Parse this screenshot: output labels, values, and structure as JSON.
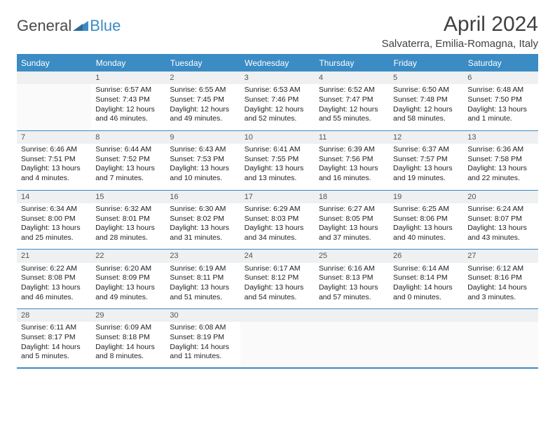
{
  "logo": {
    "part1": "General",
    "part2": "Blue"
  },
  "title": "April 2024",
  "location": "Salvaterra, Emilia-Romagna, Italy",
  "weekdays": [
    "Sunday",
    "Monday",
    "Tuesday",
    "Wednesday",
    "Thursday",
    "Friday",
    "Saturday"
  ],
  "colors": {
    "accent": "#3b8bc4",
    "header_text": "#ffffff",
    "daynum_bg": "#eef0f1",
    "blank_bg": "#fafafa",
    "text": "#222222",
    "title_text": "#404040"
  },
  "weeks": [
    {
      "nums": [
        "",
        "1",
        "2",
        "3",
        "4",
        "5",
        "6"
      ],
      "cells": [
        null,
        {
          "sunrise": "Sunrise: 6:57 AM",
          "sunset": "Sunset: 7:43 PM",
          "day1": "Daylight: 12 hours",
          "day2": "and 46 minutes."
        },
        {
          "sunrise": "Sunrise: 6:55 AM",
          "sunset": "Sunset: 7:45 PM",
          "day1": "Daylight: 12 hours",
          "day2": "and 49 minutes."
        },
        {
          "sunrise": "Sunrise: 6:53 AM",
          "sunset": "Sunset: 7:46 PM",
          "day1": "Daylight: 12 hours",
          "day2": "and 52 minutes."
        },
        {
          "sunrise": "Sunrise: 6:52 AM",
          "sunset": "Sunset: 7:47 PM",
          "day1": "Daylight: 12 hours",
          "day2": "and 55 minutes."
        },
        {
          "sunrise": "Sunrise: 6:50 AM",
          "sunset": "Sunset: 7:48 PM",
          "day1": "Daylight: 12 hours",
          "day2": "and 58 minutes."
        },
        {
          "sunrise": "Sunrise: 6:48 AM",
          "sunset": "Sunset: 7:50 PM",
          "day1": "Daylight: 13 hours",
          "day2": "and 1 minute."
        }
      ]
    },
    {
      "nums": [
        "7",
        "8",
        "9",
        "10",
        "11",
        "12",
        "13"
      ],
      "cells": [
        {
          "sunrise": "Sunrise: 6:46 AM",
          "sunset": "Sunset: 7:51 PM",
          "day1": "Daylight: 13 hours",
          "day2": "and 4 minutes."
        },
        {
          "sunrise": "Sunrise: 6:44 AM",
          "sunset": "Sunset: 7:52 PM",
          "day1": "Daylight: 13 hours",
          "day2": "and 7 minutes."
        },
        {
          "sunrise": "Sunrise: 6:43 AM",
          "sunset": "Sunset: 7:53 PM",
          "day1": "Daylight: 13 hours",
          "day2": "and 10 minutes."
        },
        {
          "sunrise": "Sunrise: 6:41 AM",
          "sunset": "Sunset: 7:55 PM",
          "day1": "Daylight: 13 hours",
          "day2": "and 13 minutes."
        },
        {
          "sunrise": "Sunrise: 6:39 AM",
          "sunset": "Sunset: 7:56 PM",
          "day1": "Daylight: 13 hours",
          "day2": "and 16 minutes."
        },
        {
          "sunrise": "Sunrise: 6:37 AM",
          "sunset": "Sunset: 7:57 PM",
          "day1": "Daylight: 13 hours",
          "day2": "and 19 minutes."
        },
        {
          "sunrise": "Sunrise: 6:36 AM",
          "sunset": "Sunset: 7:58 PM",
          "day1": "Daylight: 13 hours",
          "day2": "and 22 minutes."
        }
      ]
    },
    {
      "nums": [
        "14",
        "15",
        "16",
        "17",
        "18",
        "19",
        "20"
      ],
      "cells": [
        {
          "sunrise": "Sunrise: 6:34 AM",
          "sunset": "Sunset: 8:00 PM",
          "day1": "Daylight: 13 hours",
          "day2": "and 25 minutes."
        },
        {
          "sunrise": "Sunrise: 6:32 AM",
          "sunset": "Sunset: 8:01 PM",
          "day1": "Daylight: 13 hours",
          "day2": "and 28 minutes."
        },
        {
          "sunrise": "Sunrise: 6:30 AM",
          "sunset": "Sunset: 8:02 PM",
          "day1": "Daylight: 13 hours",
          "day2": "and 31 minutes."
        },
        {
          "sunrise": "Sunrise: 6:29 AM",
          "sunset": "Sunset: 8:03 PM",
          "day1": "Daylight: 13 hours",
          "day2": "and 34 minutes."
        },
        {
          "sunrise": "Sunrise: 6:27 AM",
          "sunset": "Sunset: 8:05 PM",
          "day1": "Daylight: 13 hours",
          "day2": "and 37 minutes."
        },
        {
          "sunrise": "Sunrise: 6:25 AM",
          "sunset": "Sunset: 8:06 PM",
          "day1": "Daylight: 13 hours",
          "day2": "and 40 minutes."
        },
        {
          "sunrise": "Sunrise: 6:24 AM",
          "sunset": "Sunset: 8:07 PM",
          "day1": "Daylight: 13 hours",
          "day2": "and 43 minutes."
        }
      ]
    },
    {
      "nums": [
        "21",
        "22",
        "23",
        "24",
        "25",
        "26",
        "27"
      ],
      "cells": [
        {
          "sunrise": "Sunrise: 6:22 AM",
          "sunset": "Sunset: 8:08 PM",
          "day1": "Daylight: 13 hours",
          "day2": "and 46 minutes."
        },
        {
          "sunrise": "Sunrise: 6:20 AM",
          "sunset": "Sunset: 8:09 PM",
          "day1": "Daylight: 13 hours",
          "day2": "and 49 minutes."
        },
        {
          "sunrise": "Sunrise: 6:19 AM",
          "sunset": "Sunset: 8:11 PM",
          "day1": "Daylight: 13 hours",
          "day2": "and 51 minutes."
        },
        {
          "sunrise": "Sunrise: 6:17 AM",
          "sunset": "Sunset: 8:12 PM",
          "day1": "Daylight: 13 hours",
          "day2": "and 54 minutes."
        },
        {
          "sunrise": "Sunrise: 6:16 AM",
          "sunset": "Sunset: 8:13 PM",
          "day1": "Daylight: 13 hours",
          "day2": "and 57 minutes."
        },
        {
          "sunrise": "Sunrise: 6:14 AM",
          "sunset": "Sunset: 8:14 PM",
          "day1": "Daylight: 14 hours",
          "day2": "and 0 minutes."
        },
        {
          "sunrise": "Sunrise: 6:12 AM",
          "sunset": "Sunset: 8:16 PM",
          "day1": "Daylight: 14 hours",
          "day2": "and 3 minutes."
        }
      ]
    },
    {
      "nums": [
        "28",
        "29",
        "30",
        "",
        "",
        "",
        ""
      ],
      "cells": [
        {
          "sunrise": "Sunrise: 6:11 AM",
          "sunset": "Sunset: 8:17 PM",
          "day1": "Daylight: 14 hours",
          "day2": "and 5 minutes."
        },
        {
          "sunrise": "Sunrise: 6:09 AM",
          "sunset": "Sunset: 8:18 PM",
          "day1": "Daylight: 14 hours",
          "day2": "and 8 minutes."
        },
        {
          "sunrise": "Sunrise: 6:08 AM",
          "sunset": "Sunset: 8:19 PM",
          "day1": "Daylight: 14 hours",
          "day2": "and 11 minutes."
        },
        null,
        null,
        null,
        null
      ]
    }
  ]
}
